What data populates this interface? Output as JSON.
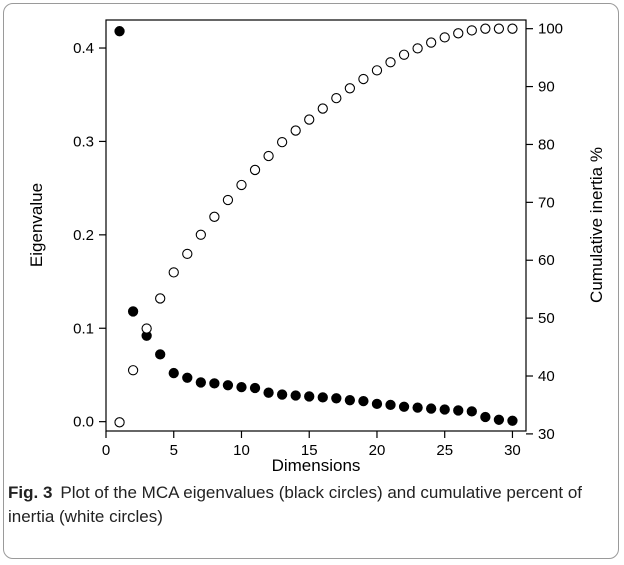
{
  "caption": {
    "label": "Fig. 3",
    "text": "Plot of the MCA eigenvalues (black circles) and cumulative percent of inertia (white circles)"
  },
  "chart_data": {
    "type": "scatter",
    "xlabel": "Dimensions",
    "ylabel": "Eigenvalue",
    "y2label": "Cumulative inertia %",
    "xlim": [
      0,
      31
    ],
    "ylim": [
      -0.01,
      0.43
    ],
    "y2lim": [
      30.5,
      101.5
    ],
    "x_ticks": [
      0,
      5,
      10,
      15,
      20,
      25,
      30
    ],
    "y_ticks": [
      0.0,
      0.1,
      0.2,
      0.3,
      0.4
    ],
    "y2_ticks": [
      30,
      40,
      50,
      60,
      70,
      80,
      90,
      100
    ],
    "x": [
      1,
      2,
      3,
      4,
      5,
      6,
      7,
      8,
      9,
      10,
      11,
      12,
      13,
      14,
      15,
      16,
      17,
      18,
      19,
      20,
      21,
      22,
      23,
      24,
      25,
      26,
      27,
      28,
      29,
      30
    ],
    "series": [
      {
        "axis": "left",
        "marker": "filled-circle",
        "color": "#000000",
        "values": [
          0.418,
          0.118,
          0.092,
          0.072,
          0.052,
          0.047,
          0.042,
          0.041,
          0.039,
          0.037,
          0.036,
          0.031,
          0.029,
          0.028,
          0.027,
          0.026,
          0.025,
          0.023,
          0.022,
          0.019,
          0.018,
          0.016,
          0.015,
          0.014,
          0.013,
          0.012,
          0.011,
          0.005,
          0.002,
          0.001
        ]
      },
      {
        "axis": "right",
        "marker": "open-circle",
        "color": "#000000",
        "values": [
          32.0,
          41.0,
          48.2,
          53.4,
          57.9,
          61.1,
          64.4,
          67.5,
          70.4,
          73.0,
          75.6,
          78.0,
          80.4,
          82.4,
          84.3,
          86.2,
          88.0,
          89.7,
          91.3,
          92.8,
          94.2,
          95.5,
          96.6,
          97.6,
          98.5,
          99.2,
          99.7,
          100.0,
          100.0,
          100.0
        ]
      }
    ]
  }
}
